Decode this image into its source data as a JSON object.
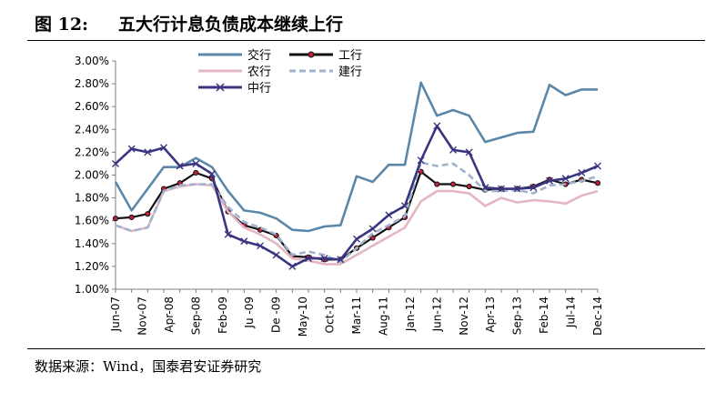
{
  "header": {
    "figure_no": "图 12:",
    "title": "五大行计息负债成本继续上行"
  },
  "footer": {
    "source": "数据来源：Wind，国泰君安证券研究"
  },
  "chart_data": {
    "type": "line",
    "title": "",
    "xlabel": "",
    "ylabel": "",
    "ylim": [
      1.0,
      3.0
    ],
    "y_ticks": [
      "3.00%",
      "2.80%",
      "2.60%",
      "2.40%",
      "2.20%",
      "2.00%",
      "1.80%",
      "1.60%",
      "1.40%",
      "1.20%",
      "1.00%"
    ],
    "x_labels": [
      "Jun-07",
      "Nov-07",
      "Apr-08",
      "Sep-08",
      "Feb-09",
      "Ju -09",
      "De -09",
      "May-10",
      "Oct-10",
      "Mar-11",
      "Aug-11",
      "Jan-12",
      "Jun-12",
      "Nov-12",
      "Apr-13",
      "Sep-13",
      "Feb-14",
      "Jul-14",
      "Dec-14"
    ],
    "legend_position": "top",
    "series": [
      {
        "name": "交行",
        "color": "#5b87a8",
        "marker": "none",
        "dash": "solid",
        "values": [
          1.94,
          1.69,
          1.88,
          2.07,
          2.07,
          2.15,
          2.07,
          1.86,
          1.69,
          1.67,
          1.62,
          1.52,
          1.51,
          1.55,
          1.56,
          1.99,
          1.94,
          2.09,
          2.09,
          2.81,
          2.52,
          2.57,
          2.52,
          2.29,
          2.33,
          2.37,
          2.38,
          2.79,
          2.7,
          2.75,
          2.75
        ]
      },
      {
        "name": "工行",
        "color": "#111111",
        "marker": "dot",
        "dash": "solid",
        "values": [
          1.62,
          1.63,
          1.66,
          1.88,
          1.93,
          2.02,
          1.97,
          1.68,
          1.56,
          1.52,
          1.47,
          1.29,
          1.28,
          1.26,
          1.26,
          1.36,
          1.45,
          1.54,
          1.63,
          2.03,
          1.92,
          1.92,
          1.9,
          1.87,
          1.88,
          1.88,
          1.9,
          1.96,
          1.92,
          1.96,
          1.93
        ]
      },
      {
        "name": "农行",
        "color": "#e3b6c2",
        "marker": "none",
        "dash": "solid",
        "values": [
          1.56,
          1.51,
          1.54,
          1.86,
          1.9,
          1.92,
          1.91,
          1.68,
          1.54,
          1.48,
          1.4,
          1.27,
          1.25,
          1.22,
          1.22,
          1.3,
          1.38,
          1.46,
          1.54,
          1.77,
          1.86,
          1.86,
          1.84,
          1.73,
          1.8,
          1.76,
          1.78,
          1.77,
          1.75,
          1.82,
          1.86
        ]
      },
      {
        "name": "建行",
        "color": "#9fb3cf",
        "marker": "none",
        "dash": "dashed",
        "values": [
          1.56,
          1.51,
          1.54,
          1.86,
          1.91,
          1.92,
          1.92,
          1.72,
          1.59,
          1.54,
          1.48,
          1.3,
          1.33,
          1.3,
          1.24,
          1.36,
          1.49,
          1.56,
          1.64,
          2.11,
          2.08,
          2.1,
          2.0,
          1.86,
          1.86,
          1.87,
          1.84,
          1.91,
          1.92,
          1.95,
          1.99
        ]
      },
      {
        "name": "中行",
        "color": "#3a3580",
        "marker": "x",
        "dash": "solid",
        "values": [
          2.1,
          2.23,
          2.2,
          2.24,
          2.08,
          2.1,
          2.01,
          1.48,
          1.42,
          1.38,
          1.3,
          1.2,
          1.27,
          1.27,
          1.26,
          1.44,
          1.53,
          1.65,
          1.73,
          2.13,
          2.43,
          2.22,
          2.2,
          1.89,
          1.88,
          1.88,
          1.89,
          1.95,
          1.97,
          2.02,
          2.08
        ]
      }
    ]
  }
}
